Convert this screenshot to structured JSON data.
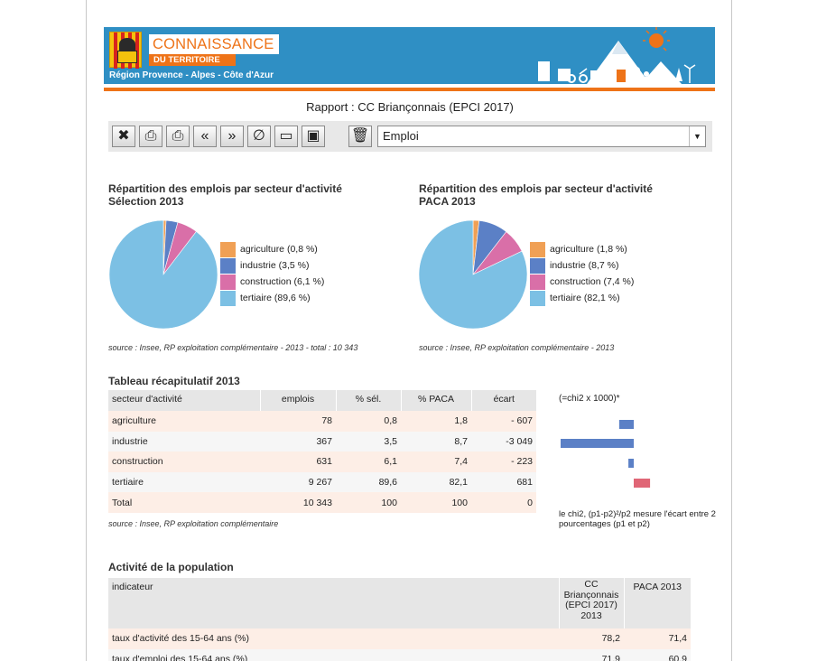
{
  "header": {
    "logo_title": "CONNAISSANCE",
    "logo_subtitle": "DU TERRITOIRE",
    "region": "Région Provence - Alpes - Côte d'Azur",
    "colors": {
      "banner": "#2f8fc4",
      "accent": "#ee7318"
    }
  },
  "report_title": "Rapport : CC Briançonnais (EPCI 2017)",
  "toolbar": {
    "buttons": [
      "close-icon",
      "print-icon",
      "print-all-icon",
      "previous-icon",
      "next-icon",
      "clear-icon",
      "layout-icon",
      "save-icon",
      "trash-icon"
    ],
    "selected_theme": "Emploi"
  },
  "chart_data": [
    {
      "type": "pie",
      "title_line1": "Répartition des emplois par secteur d'activité",
      "title_line2": "Sélection 2013",
      "legend_position": "right",
      "slices": [
        {
          "label": "agriculture (0,8 %)",
          "value": 0.8,
          "color": "#f0a055"
        },
        {
          "label": "industrie (3,5 %)",
          "value": 3.5,
          "color": "#5b80c6"
        },
        {
          "label": "construction (6,1 %)",
          "value": 6.1,
          "color": "#d96fa8"
        },
        {
          "label": "tertiaire (89,6 %)",
          "value": 89.6,
          "color": "#7cc0e4"
        }
      ],
      "source": "source : Insee, RP exploitation complémentaire - 2013 - total : 10 343"
    },
    {
      "type": "pie",
      "title_line1": "Répartition des emplois par secteur d'activité",
      "title_line2": "PACA 2013",
      "legend_position": "right",
      "slices": [
        {
          "label": "agriculture (1,8 %)",
          "value": 1.8,
          "color": "#f0a055"
        },
        {
          "label": "industrie (8,7 %)",
          "value": 8.7,
          "color": "#5b80c6"
        },
        {
          "label": "construction (7,4 %)",
          "value": 7.4,
          "color": "#d96fa8"
        },
        {
          "label": "tertiaire (82,1 %)",
          "value": 82.1,
          "color": "#7cc0e4"
        }
      ],
      "source": "source : Insee, RP exploitation complémentaire - 2013"
    },
    {
      "type": "bar",
      "title": "(=chi2 x 1000)*",
      "orientation": "horizontal",
      "categories": [
        "agriculture",
        "industrie",
        "construction",
        "tertiaire"
      ],
      "values": [
        -607,
        -3049,
        -223,
        681
      ],
      "colors": {
        "negative": "#5b80c6",
        "positive": "#e06676"
      },
      "note": "le chi2, (p1-p2)²/p2 mesure l'écart entre 2 pourcentages (p1 et p2)"
    }
  ],
  "recap": {
    "title": "Tableau récapitulatif 2013",
    "headers": [
      "secteur d'activité",
      "emplois",
      "% sél.",
      "% PACA",
      "écart"
    ],
    "rows": [
      [
        "agriculture",
        "78",
        "0,8",
        "1,8",
        "- 607"
      ],
      [
        "industrie",
        "367",
        "3,5",
        "8,7",
        "-3 049"
      ],
      [
        "construction",
        "631",
        "6,1",
        "7,4",
        "- 223"
      ],
      [
        "tertiaire",
        "9 267",
        "89,6",
        "82,1",
        "681"
      ],
      [
        "Total",
        "10 343",
        "100",
        "100",
        "0"
      ]
    ],
    "source": "source : Insee, RP exploitation complémentaire"
  },
  "activite": {
    "title": "Activité de la population",
    "headers": [
      "indicateur",
      "CC Briançonnais (EPCI 2017) 2013",
      "PACA 2013"
    ],
    "rows": [
      [
        "taux d'activité des 15-64 ans (%)",
        "78,2",
        "71,4"
      ],
      [
        "taux d'emploi des 15-64 ans (%)",
        "71,9",
        "60,9"
      ]
    ]
  }
}
